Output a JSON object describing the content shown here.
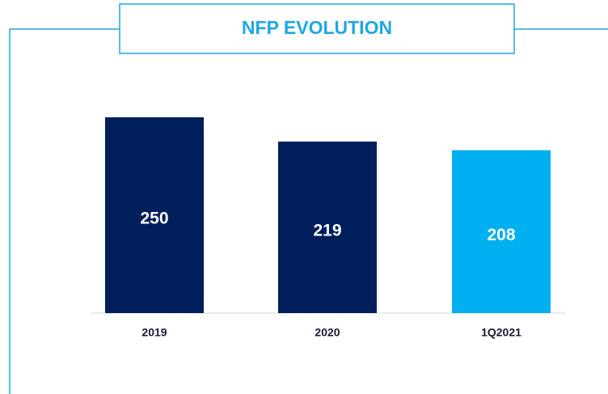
{
  "chart_data": {
    "type": "bar",
    "title": "NFP EVOLUTION",
    "categories": [
      "2019",
      "2020",
      "1Q2021"
    ],
    "values": [
      250,
      219,
      208
    ],
    "colors": [
      "#001f5b",
      "#001f5b",
      "#00b0f0"
    ],
    "grid": false
  }
}
